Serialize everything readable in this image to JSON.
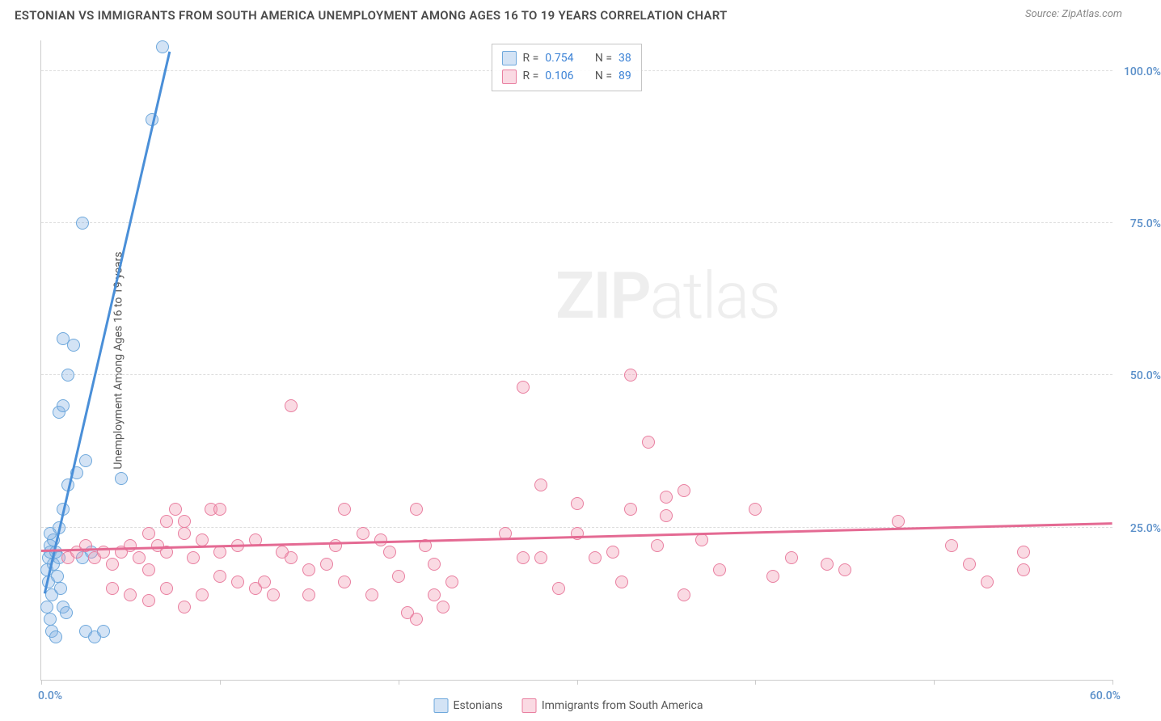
{
  "title": "ESTONIAN VS IMMIGRANTS FROM SOUTH AMERICA UNEMPLOYMENT AMONG AGES 16 TO 19 YEARS CORRELATION CHART",
  "source": "Source: ZipAtlas.com",
  "y_axis_label": "Unemployment Among Ages 16 to 19 years",
  "watermark": {
    "part1": "ZIP",
    "part2": "atlas"
  },
  "chart": {
    "type": "scatter",
    "xlim": [
      0,
      60
    ],
    "ylim": [
      0,
      105
    ],
    "x_ticks": [
      0,
      10,
      20,
      30,
      40,
      50,
      60
    ],
    "y_ticks": [
      25,
      50,
      75,
      100
    ],
    "x_tick_labels": {
      "0": "0.0%",
      "60": "60.0%"
    },
    "y_tick_labels": {
      "25": "25.0%",
      "50": "50.0%",
      "75": "75.0%",
      "100": "100.0%"
    },
    "grid_color": "#dddddd",
    "background_color": "#ffffff",
    "axis_color": "#cccccc",
    "series": [
      {
        "name": "Estonians",
        "color_fill": "rgba(130,175,225,0.35)",
        "color_stroke": "#6ea8dc",
        "trend_color": "#4a8fd8",
        "R_label": "R =",
        "R": "0.754",
        "N_label": "N =",
        "N": "38",
        "trend": {
          "x1": 0.2,
          "y1": 14,
          "x2": 7.2,
          "y2": 103
        },
        "points": [
          [
            0.3,
            18
          ],
          [
            0.4,
            20
          ],
          [
            0.5,
            22
          ],
          [
            0.6,
            14
          ],
          [
            0.7,
            19
          ],
          [
            0.5,
            21
          ],
          [
            0.8,
            21
          ],
          [
            1.0,
            20
          ],
          [
            0.5,
            10
          ],
          [
            0.6,
            8
          ],
          [
            0.8,
            7
          ],
          [
            1.2,
            12
          ],
          [
            1.4,
            11
          ],
          [
            2.3,
            20
          ],
          [
            2.8,
            21
          ],
          [
            2.5,
            8
          ],
          [
            3.0,
            7
          ],
          [
            3.5,
            8
          ],
          [
            1.0,
            25
          ],
          [
            1.2,
            28
          ],
          [
            1.5,
            32
          ],
          [
            2.0,
            34
          ],
          [
            2.5,
            36
          ],
          [
            4.5,
            33
          ],
          [
            1.0,
            44
          ],
          [
            1.2,
            45
          ],
          [
            1.5,
            50
          ],
          [
            1.8,
            55
          ],
          [
            1.2,
            56
          ],
          [
            2.3,
            75
          ],
          [
            6.2,
            92
          ],
          [
            6.8,
            104
          ],
          [
            0.4,
            16
          ],
          [
            0.7,
            23
          ],
          [
            0.9,
            17
          ],
          [
            1.1,
            15
          ],
          [
            0.3,
            12
          ],
          [
            0.5,
            24
          ]
        ]
      },
      {
        "name": "Immigrants from South America",
        "color_fill": "rgba(240,150,175,0.35)",
        "color_stroke": "#e97fa0",
        "trend_color": "#e46a93",
        "R_label": "R =",
        "R": "0.106",
        "N_label": "N =",
        "N": "89",
        "trend": {
          "x1": 0,
          "y1": 21,
          "x2": 60,
          "y2": 25.5
        },
        "points": [
          [
            1.5,
            20
          ],
          [
            2,
            21
          ],
          [
            2.5,
            22
          ],
          [
            3,
            20
          ],
          [
            3.5,
            21
          ],
          [
            4,
            19
          ],
          [
            4.5,
            21
          ],
          [
            5,
            22
          ],
          [
            5.5,
            20
          ],
          [
            6,
            18
          ],
          [
            6.5,
            22
          ],
          [
            7,
            21
          ],
          [
            7.5,
            28
          ],
          [
            8,
            24
          ],
          [
            8.5,
            20
          ],
          [
            9,
            23
          ],
          [
            9.5,
            28
          ],
          [
            10,
            21
          ],
          [
            4,
            15
          ],
          [
            5,
            14
          ],
          [
            6,
            13
          ],
          [
            7,
            15
          ],
          [
            8,
            12
          ],
          [
            9,
            14
          ],
          [
            10,
            17
          ],
          [
            11,
            16
          ],
          [
            12,
            15
          ],
          [
            6,
            24
          ],
          [
            7,
            26
          ],
          [
            8,
            26
          ],
          [
            10,
            28
          ],
          [
            11,
            22
          ],
          [
            12,
            23
          ],
          [
            12.5,
            16
          ],
          [
            13,
            14
          ],
          [
            13.5,
            21
          ],
          [
            14,
            20
          ],
          [
            14,
            45
          ],
          [
            15,
            18
          ],
          [
            15,
            14
          ],
          [
            16,
            19
          ],
          [
            16.5,
            22
          ],
          [
            17,
            16
          ],
          [
            17,
            28
          ],
          [
            18,
            24
          ],
          [
            18.5,
            14
          ],
          [
            19,
            23
          ],
          [
            19.5,
            21
          ],
          [
            20,
            17
          ],
          [
            20.5,
            11
          ],
          [
            21,
            28
          ],
          [
            21.5,
            22
          ],
          [
            22,
            19
          ],
          [
            22.5,
            12
          ],
          [
            21,
            10
          ],
          [
            22,
            14
          ],
          [
            23,
            16
          ],
          [
            26,
            24
          ],
          [
            27,
            20
          ],
          [
            27,
            48
          ],
          [
            28,
            20
          ],
          [
            28,
            32
          ],
          [
            29,
            15
          ],
          [
            30,
            24
          ],
          [
            30,
            29
          ],
          [
            31,
            20
          ],
          [
            32,
            21
          ],
          [
            32.5,
            16
          ],
          [
            33,
            28
          ],
          [
            33,
            50
          ],
          [
            34,
            39
          ],
          [
            34.5,
            22
          ],
          [
            35,
            27
          ],
          [
            35,
            30
          ],
          [
            36,
            14
          ],
          [
            36,
            31
          ],
          [
            37,
            23
          ],
          [
            38,
            18
          ],
          [
            40,
            28
          ],
          [
            41,
            17
          ],
          [
            42,
            20
          ],
          [
            44,
            19
          ],
          [
            45,
            18
          ],
          [
            48,
            26
          ],
          [
            51,
            22
          ],
          [
            52,
            19
          ],
          [
            53,
            16
          ],
          [
            55,
            18
          ],
          [
            55,
            21
          ]
        ]
      }
    ]
  },
  "legend_bottom": [
    {
      "label": "Estonians"
    },
    {
      "label": "Immigrants from South America"
    }
  ],
  "tick_label_colors": {
    "left": "#5a8fc9",
    "right": "#5a8fc9"
  }
}
